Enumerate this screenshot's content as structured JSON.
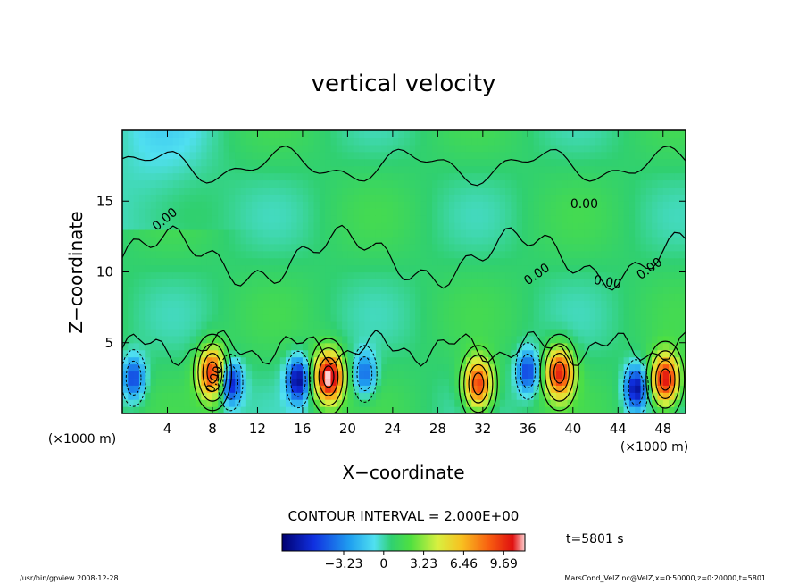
{
  "chart_data": {
    "type": "heatmap",
    "title": "vertical velocity",
    "xlabel": "X−coordinate",
    "ylabel": "Z−coordinate",
    "x_unit_left": "(×1000 m)",
    "x_unit_right": "(×1000 m)",
    "xlim": [
      0,
      50
    ],
    "ylim": [
      0,
      20
    ],
    "x_ticks": [
      4,
      8,
      12,
      16,
      20,
      24,
      28,
      32,
      36,
      40,
      44,
      48
    ],
    "y_ticks": [
      5,
      10,
      15
    ],
    "contour_interval_text": "CONTOUR INTERVAL = 2.000E+00",
    "contour_labels": [
      "0.00",
      "0.00",
      "0.00",
      "0.00",
      "0.00",
      "0.00"
    ],
    "colorbar": {
      "ticks": [
        "−3.23",
        "0",
        "3.23",
        "6.46",
        "9.69"
      ],
      "tick_values": [
        -3.23,
        0,
        3.23,
        6.46,
        9.69
      ],
      "min": -8.2,
      "max": 11.4
    },
    "updraft_cores": [
      {
        "x": 8,
        "z": 2.9,
        "peak": 9.0
      },
      {
        "x": 18.3,
        "z": 2.6,
        "peak": 11.0
      },
      {
        "x": 31.6,
        "z": 2.1,
        "peak": 9.0
      },
      {
        "x": 38.8,
        "z": 2.9,
        "peak": 9.0
      },
      {
        "x": 48.2,
        "z": 2.4,
        "peak": 10.0
      }
    ],
    "downdraft_cores": [
      {
        "x": 1,
        "z": 2.5,
        "peak": -6.0
      },
      {
        "x": 9.6,
        "z": 2.2,
        "peak": -8.0
      },
      {
        "x": 15.6,
        "z": 2.4,
        "peak": -8.0
      },
      {
        "x": 21.5,
        "z": 2.8,
        "peak": -5.0
      },
      {
        "x": 36,
        "z": 3.0,
        "peak": -6.0
      },
      {
        "x": 45.6,
        "z": 1.8,
        "peak": -8.0
      }
    ],
    "time_text": "t=5801 s"
  },
  "footer": {
    "left": "/usr/bin/gpview  2008-12-28",
    "right": "MarsCond_VelZ.nc@VelZ,x=0:50000,z=0:20000,t=5801"
  }
}
